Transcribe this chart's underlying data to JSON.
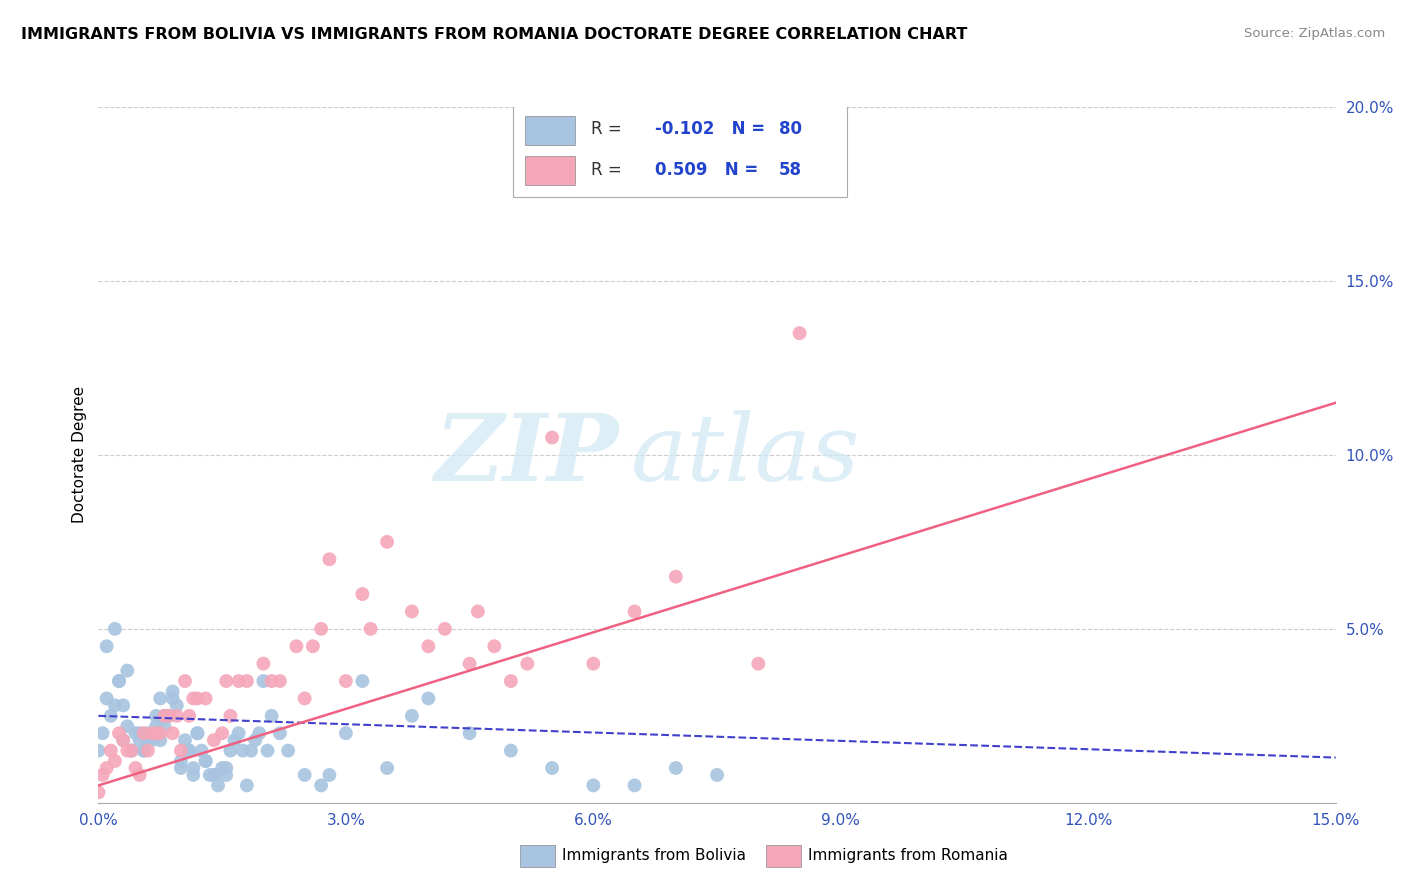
{
  "title": "IMMIGRANTS FROM BOLIVIA VS IMMIGRANTS FROM ROMANIA DOCTORATE DEGREE CORRELATION CHART",
  "source": "Source: ZipAtlas.com",
  "ylabel_label": "Doctorate Degree",
  "xmin": 0.0,
  "xmax": 15.0,
  "ymin": 0.0,
  "ymax": 20.0,
  "bolivia_color": "#a8c4e0",
  "romania_color": "#f4a7b9",
  "bolivia_line_color": "#4040cc",
  "romania_line_color": "#f06080",
  "bolivia_label": "Immigrants from Bolivia",
  "romania_label": "Immigrants from Romania",
  "bolivia_R": "-0.102",
  "bolivia_N": "80",
  "romania_R": "0.509",
  "romania_N": "58",
  "watermark_zip": "ZIP",
  "watermark_atlas": "atlas",
  "bolivia_scatter_x": [
    0.0,
    0.05,
    0.1,
    0.15,
    0.2,
    0.25,
    0.3,
    0.35,
    0.4,
    0.45,
    0.5,
    0.55,
    0.6,
    0.65,
    0.7,
    0.75,
    0.8,
    0.85,
    0.9,
    0.95,
    1.0,
    1.05,
    1.1,
    1.15,
    1.2,
    1.25,
    1.3,
    1.35,
    1.4,
    1.45,
    1.5,
    1.55,
    1.6,
    1.65,
    1.7,
    1.75,
    1.8,
    1.85,
    1.9,
    1.95,
    2.0,
    2.05,
    2.1,
    2.2,
    2.3,
    2.5,
    2.7,
    2.8,
    3.0,
    3.2,
    3.5,
    3.8,
    4.0,
    4.5,
    5.0,
    5.5,
    6.0,
    6.5,
    7.0,
    7.5,
    0.1,
    0.2,
    0.3,
    0.4,
    0.5,
    0.6,
    0.7,
    0.8,
    0.9,
    1.0,
    1.1,
    1.2,
    1.3,
    1.4,
    0.25,
    0.35,
    0.55,
    0.75,
    1.15,
    1.55
  ],
  "bolivia_scatter_y": [
    1.5,
    2.0,
    3.0,
    2.5,
    2.8,
    3.5,
    1.8,
    2.2,
    1.5,
    2.0,
    1.8,
    1.5,
    2.0,
    1.8,
    2.5,
    3.0,
    2.2,
    2.5,
    3.0,
    2.8,
    1.2,
    1.8,
    1.5,
    1.0,
    2.0,
    1.5,
    1.2,
    0.8,
    0.8,
    0.5,
    1.0,
    0.8,
    1.5,
    1.8,
    2.0,
    1.5,
    0.5,
    1.5,
    1.8,
    2.0,
    3.5,
    1.5,
    2.5,
    2.0,
    1.5,
    0.8,
    0.5,
    0.8,
    2.0,
    3.5,
    1.0,
    2.5,
    3.0,
    2.0,
    1.5,
    1.0,
    0.5,
    0.5,
    1.0,
    0.8,
    4.5,
    5.0,
    2.8,
    1.5,
    2.0,
    1.8,
    2.2,
    2.5,
    3.2,
    1.0,
    1.5,
    2.0,
    1.2,
    0.8,
    3.5,
    3.8,
    1.5,
    1.8,
    0.8,
    1.0
  ],
  "romania_scatter_x": [
    0.0,
    0.05,
    0.1,
    0.15,
    0.2,
    0.25,
    0.3,
    0.4,
    0.5,
    0.6,
    0.7,
    0.8,
    0.9,
    1.0,
    1.1,
    1.2,
    1.3,
    1.5,
    1.6,
    1.8,
    2.0,
    2.2,
    2.5,
    2.7,
    2.8,
    3.0,
    3.2,
    3.5,
    3.8,
    4.0,
    4.5,
    4.8,
    5.0,
    5.5,
    6.0,
    6.5,
    7.0,
    8.0,
    8.5,
    0.35,
    0.55,
    0.75,
    0.95,
    1.15,
    1.4,
    1.7,
    2.1,
    2.4,
    2.6,
    3.3,
    4.2,
    5.2,
    4.6,
    0.45,
    0.65,
    0.85,
    1.05,
    1.55
  ],
  "romania_scatter_y": [
    0.3,
    0.8,
    1.0,
    1.5,
    1.2,
    2.0,
    1.8,
    1.5,
    0.8,
    1.5,
    2.0,
    2.5,
    2.0,
    1.5,
    2.5,
    3.0,
    3.0,
    2.0,
    2.5,
    3.5,
    4.0,
    3.5,
    3.0,
    5.0,
    7.0,
    3.5,
    6.0,
    7.5,
    5.5,
    4.5,
    4.0,
    4.5,
    3.5,
    10.5,
    4.0,
    5.5,
    6.5,
    4.0,
    13.5,
    1.5,
    2.0,
    2.0,
    2.5,
    3.0,
    1.8,
    3.5,
    3.5,
    4.5,
    4.5,
    5.0,
    5.0,
    4.0,
    5.5,
    1.0,
    2.0,
    2.5,
    3.5,
    3.5
  ],
  "bolivia_trend_x": [
    0,
    15
  ],
  "bolivia_trend_y": [
    2.5,
    1.3
  ],
  "romania_trend_x": [
    0,
    15
  ],
  "romania_trend_y": [
    0.5,
    11.5
  ],
  "xticks": [
    0,
    3,
    6,
    9,
    12,
    15
  ],
  "xtick_labels": [
    "0.0%",
    "3.0%",
    "6.0%",
    "9.0%",
    "12.0%",
    "15.0%"
  ],
  "yticks": [
    0,
    5,
    10,
    15,
    20
  ],
  "ytick_labels": [
    "",
    "5.0%",
    "10.0%",
    "15.0%",
    "20.0%"
  ]
}
